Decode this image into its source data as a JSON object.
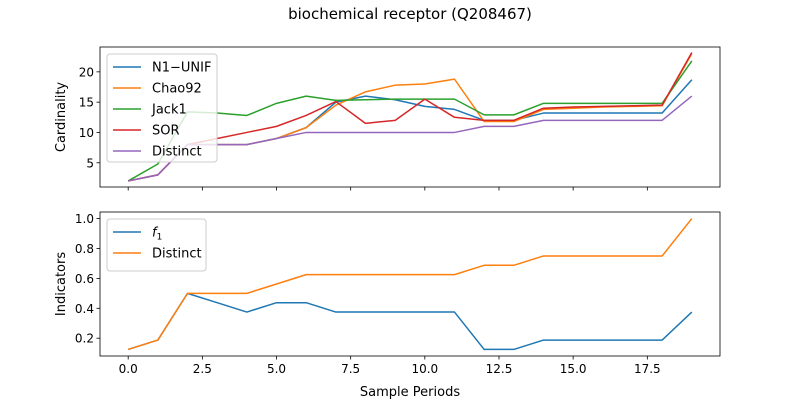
{
  "figure_title": "biochemical receptor (Q208467)",
  "x_label": "Sample Periods",
  "chart_data": [
    {
      "type": "line",
      "ylabel": "Cardinality",
      "xlim": [
        -0.95,
        19.95
      ],
      "ylim": [
        1.0,
        24.1
      ],
      "x_ticks": [
        0,
        2.5,
        5,
        7.5,
        10,
        12.5,
        15,
        17.5
      ],
      "x_tick_labels": [],
      "y_ticks": [
        5,
        10,
        15,
        20
      ],
      "y_tick_labels": [
        "5",
        "10",
        "15",
        "20"
      ],
      "legend_position": "top-left",
      "x": [
        0,
        1,
        2,
        3,
        4,
        5,
        6,
        7,
        8,
        9,
        10,
        11,
        12,
        13,
        14,
        15,
        16,
        17,
        18,
        19
      ],
      "series": [
        {
          "name": "N1−UNIF",
          "color": "#1f77b4",
          "values": [
            2,
            3,
            8,
            8,
            8,
            9,
            10.8,
            15,
            16,
            15.4,
            14.3,
            13.8,
            12,
            12,
            13.2,
            13.2,
            13.2,
            13.2,
            13.2,
            18.7
          ]
        },
        {
          "name": "Chao92",
          "color": "#ff7f0e",
          "values": [
            2,
            3,
            8,
            8,
            8,
            9,
            10.8,
            14.5,
            16.7,
            17.8,
            18,
            18.8,
            11.8,
            11.8,
            13.8,
            14,
            14.2,
            14.3,
            14.4,
            23
          ]
        },
        {
          "name": "Jack1",
          "color": "#2ca02c",
          "values": [
            2,
            4.8,
            13.4,
            13.2,
            12.8,
            14.8,
            16,
            15.3,
            15.4,
            15.5,
            15.5,
            15.5,
            12.9,
            12.9,
            14.8,
            14.8,
            14.8,
            14.8,
            14.8,
            21.8
          ]
        },
        {
          "name": "SOR",
          "color": "#d62728",
          "values": [
            2,
            3,
            8,
            9,
            10,
            11,
            12.8,
            15.1,
            11.5,
            12,
            15.5,
            12.5,
            12,
            12,
            14,
            14.2,
            14.3,
            14.4,
            14.5,
            23.2
          ]
        },
        {
          "name": "Distinct",
          "color": "#9467bd",
          "values": [
            2,
            3,
            8,
            8,
            8,
            9,
            10,
            10,
            10,
            10,
            10,
            10,
            11,
            11,
            12,
            12,
            12,
            12,
            12,
            16
          ]
        }
      ]
    },
    {
      "type": "line",
      "ylabel": "Indicators",
      "xlim": [
        -0.95,
        19.95
      ],
      "ylim": [
        0.081,
        1.044
      ],
      "x_ticks": [
        0,
        2.5,
        5,
        7.5,
        10,
        12.5,
        15,
        17.5
      ],
      "x_tick_labels": [
        "0.0",
        "2.5",
        "5.0",
        "7.5",
        "10.0",
        "12.5",
        "15.0",
        "17.5"
      ],
      "y_ticks": [
        0.2,
        0.4,
        0.6,
        0.8,
        1.0
      ],
      "y_tick_labels": [
        "0.2",
        "0.4",
        "0.6",
        "0.8",
        "1.0"
      ],
      "legend_position": "top-left",
      "x": [
        0,
        1,
        2,
        3,
        4,
        5,
        6,
        7,
        8,
        9,
        10,
        11,
        12,
        13,
        14,
        15,
        16,
        17,
        18,
        19
      ],
      "series": [
        {
          "name": "f1",
          "legend_label": "f",
          "legend_subscript": "1",
          "color": "#1f77b4",
          "values": [
            0.125,
            0.1875,
            0.5,
            0.4375,
            0.375,
            0.4375,
            0.4375,
            0.375,
            0.375,
            0.375,
            0.375,
            0.375,
            0.125,
            0.125,
            0.1875,
            0.1875,
            0.1875,
            0.1875,
            0.1875,
            0.375
          ]
        },
        {
          "name": "Distinct",
          "color": "#ff7f0e",
          "values": [
            0.125,
            0.1875,
            0.5,
            0.5,
            0.5,
            0.5625,
            0.625,
            0.625,
            0.625,
            0.625,
            0.625,
            0.625,
            0.6875,
            0.6875,
            0.75,
            0.75,
            0.75,
            0.75,
            0.75,
            1.0
          ]
        }
      ]
    }
  ]
}
